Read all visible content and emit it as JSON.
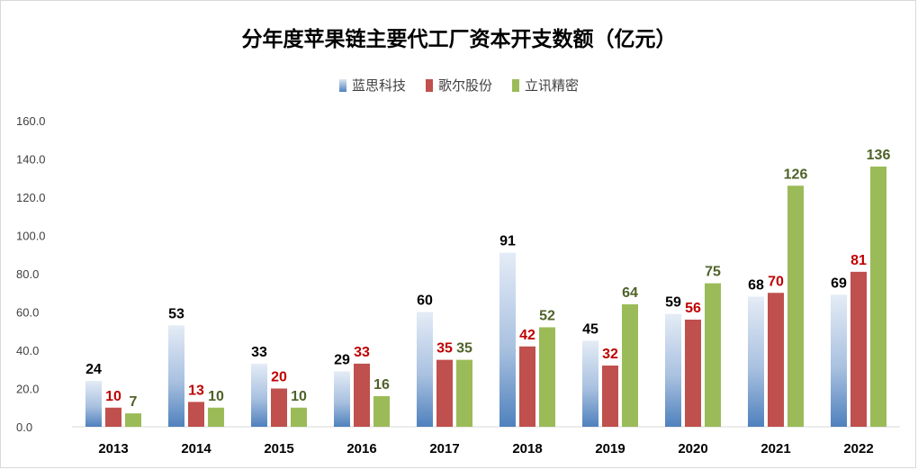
{
  "chart_data": {
    "type": "bar",
    "title": "分年度苹果链主要代工厂资本开支数额（亿元）",
    "categories": [
      "2013",
      "2014",
      "2015",
      "2016",
      "2017",
      "2018",
      "2019",
      "2020",
      "2021",
      "2022"
    ],
    "series": [
      {
        "name": "蓝思科技",
        "values": [
          24,
          53,
          33,
          29,
          60,
          91,
          45,
          59,
          68,
          69
        ],
        "color": "#4f81bd",
        "label_color": "#000000"
      },
      {
        "name": "歌尔股份",
        "values": [
          10,
          13,
          20,
          33,
          35,
          42,
          32,
          56,
          70,
          81
        ],
        "color": "#c0504d",
        "label_color": "#c00000"
      },
      {
        "name": "立讯精密",
        "values": [
          7,
          10,
          10,
          16,
          35,
          52,
          64,
          75,
          126,
          136
        ],
        "color": "#9bbb59",
        "label_color": "#4f6228"
      }
    ],
    "ylim": [
      0,
      160
    ],
    "yticks": [
      "0.0",
      "20.0",
      "40.0",
      "60.0",
      "80.0",
      "100.0",
      "120.0",
      "140.0",
      "160.0"
    ],
    "grid": false,
    "legend_position": "top"
  }
}
